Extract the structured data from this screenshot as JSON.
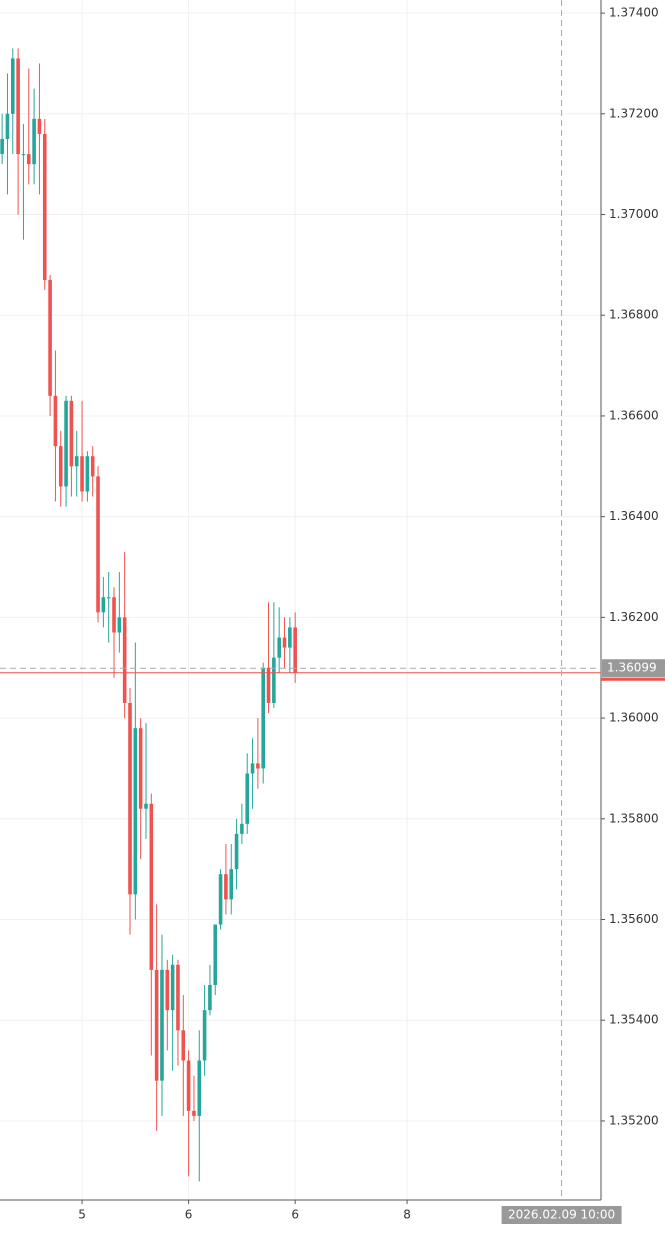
{
  "chart_data": {
    "type": "candlestick",
    "categories": [
      null,
      null,
      null,
      null,
      null,
      null,
      null,
      null,
      null,
      null,
      null,
      null,
      null,
      null,
      null,
      null,
      null,
      null,
      null,
      null,
      null,
      null,
      null,
      null,
      null,
      null,
      null,
      null,
      null,
      null,
      null,
      null,
      null,
      null,
      null,
      null,
      null,
      null,
      null,
      null,
      null,
      null,
      null,
      null,
      null,
      null,
      null,
      null,
      null,
      null,
      null,
      null,
      null,
      null,
      null,
      null
    ],
    "open": [
      1.3712,
      1.3715,
      1.372,
      1.3731,
      1.3712,
      1.3712,
      1.371,
      1.3719,
      1.3716,
      1.3687,
      1.3664,
      1.3654,
      1.3646,
      1.3663,
      1.365,
      1.3652,
      1.3645,
      1.3652,
      1.3648,
      1.3621,
      1.3624,
      1.3624,
      1.3617,
      1.362,
      1.3603,
      1.3565,
      1.3598,
      1.3582,
      1.3583,
      1.355,
      1.3528,
      1.355,
      1.3542,
      1.3551,
      1.3538,
      1.3532,
      1.3522,
      1.3521,
      1.3532,
      1.3542,
      1.3547,
      1.3559,
      1.3569,
      1.3564,
      1.357,
      1.3577,
      1.3579,
      1.3589,
      1.3591,
      1.359,
      1.361,
      1.3603,
      1.3612,
      1.3616,
      1.3614,
      1.3618
    ],
    "high": [
      1.372,
      1.3728,
      1.3733,
      1.3733,
      1.3718,
      1.3729,
      1.3725,
      1.373,
      1.3719,
      1.3688,
      1.3673,
      1.3657,
      1.3664,
      1.3664,
      1.3657,
      1.3663,
      1.3653,
      1.3654,
      1.365,
      1.3628,
      1.3629,
      1.3626,
      1.3629,
      1.3633,
      1.3606,
      1.3615,
      1.36,
      1.3599,
      1.3585,
      1.3563,
      1.3557,
      1.3552,
      1.3553,
      1.3552,
      1.3545,
      1.3534,
      1.3529,
      1.3538,
      1.3547,
      1.3551,
      1.3559,
      1.357,
      1.3575,
      1.3575,
      1.358,
      1.3583,
      1.3593,
      1.3596,
      1.36,
      1.3611,
      1.3623,
      1.3623,
      1.3622,
      1.362,
      1.362,
      1.3621
    ],
    "low": [
      1.371,
      1.3704,
      1.3712,
      1.37,
      1.3695,
      1.3706,
      1.3706,
      1.3704,
      1.3685,
      1.366,
      1.3643,
      1.3642,
      1.3642,
      1.3644,
      1.3644,
      1.3643,
      1.3643,
      1.3644,
      1.3619,
      1.3618,
      1.3615,
      1.3608,
      1.3613,
      1.36,
      1.3557,
      1.356,
      1.3572,
      1.3576,
      1.3533,
      1.3518,
      1.3521,
      1.3534,
      1.353,
      1.3531,
      1.3521,
      1.3509,
      1.352,
      1.3508,
      1.3529,
      1.3541,
      1.3545,
      1.3558,
      1.3561,
      1.3561,
      1.3566,
      1.3575,
      1.3577,
      1.3582,
      1.3586,
      1.3587,
      1.3601,
      1.3602,
      1.3609,
      1.361,
      1.3609,
      1.3607
    ],
    "close": [
      1.3715,
      1.372,
      1.3731,
      1.3712,
      1.3712,
      1.371,
      1.3719,
      1.3716,
      1.3687,
      1.3664,
      1.3654,
      1.3646,
      1.3663,
      1.365,
      1.3652,
      1.3645,
      1.3652,
      1.3648,
      1.3621,
      1.3624,
      1.3624,
      1.3617,
      1.362,
      1.3603,
      1.3565,
      1.3598,
      1.3582,
      1.3583,
      1.355,
      1.3528,
      1.355,
      1.3542,
      1.3551,
      1.3538,
      1.3532,
      1.3522,
      1.3521,
      1.3532,
      1.3542,
      1.3547,
      1.3559,
      1.3569,
      1.3564,
      1.357,
      1.3577,
      1.3579,
      1.3589,
      1.3591,
      1.359,
      1.361,
      1.3603,
      1.3612,
      1.3616,
      1.3614,
      1.3618,
      1.3609
    ],
    "up_color": "#26a69a",
    "down_color": "#ef5350",
    "last_price_color": "#ef5350",
    "xlim": [
      -0.4,
      112.4
    ],
    "xticks": [
      {
        "value": 15,
        "label": "5"
      },
      {
        "value": 35,
        "label": "6"
      },
      {
        "value": 55,
        "label": "6"
      },
      {
        "value": 76,
        "label": "8"
      }
    ],
    "ylim": [
      1.35043,
      1.37426
    ],
    "yticks": [
      {
        "value": 1.374,
        "label": "1.37400"
      },
      {
        "value": 1.372,
        "label": "1.37200"
      },
      {
        "value": 1.37,
        "label": "1.37000"
      },
      {
        "value": 1.368,
        "label": "1.36800"
      },
      {
        "value": 1.366,
        "label": "1.36600"
      },
      {
        "value": 1.364,
        "label": "1.36400"
      },
      {
        "value": 1.362,
        "label": "1.36200"
      },
      {
        "value": 1.36,
        "label": "1.36000"
      },
      {
        "value": 1.358,
        "label": "1.35800"
      },
      {
        "value": 1.356,
        "label": "1.35600"
      },
      {
        "value": 1.354,
        "label": "1.35400"
      },
      {
        "value": 1.352,
        "label": "1.35200"
      }
    ],
    "grid": true,
    "crosshair": {
      "x": 105,
      "x_label": "2026.02.09 10:00",
      "y": 1.36099
    }
  }
}
